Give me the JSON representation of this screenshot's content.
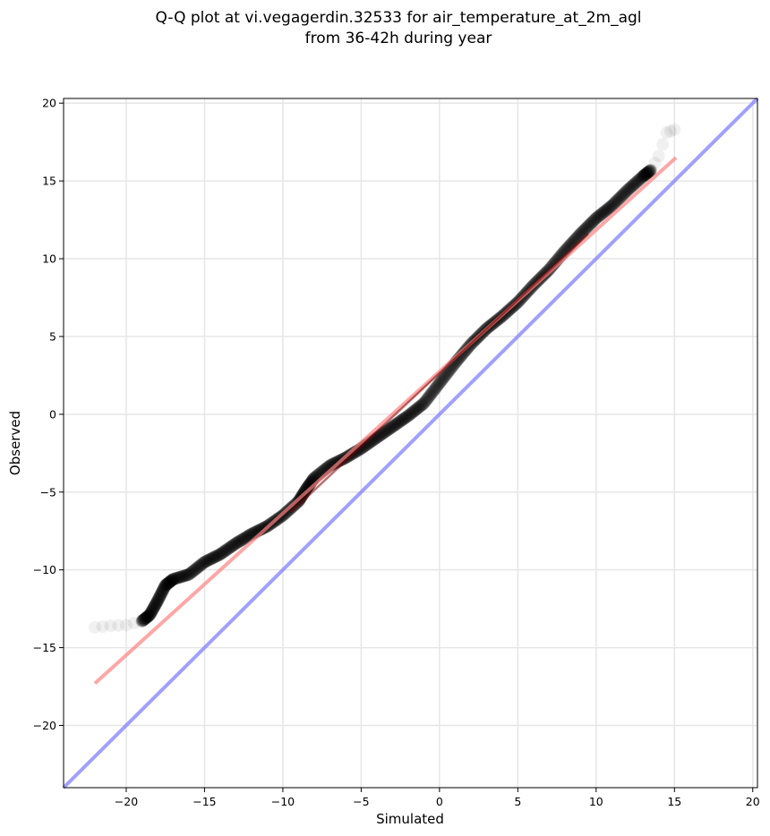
{
  "chart_data": {
    "type": "scatter",
    "title": [
      "Q-Q plot at vi.vegagerdin.32533 for air_temperature_at_2m_agl",
      "from 36-42h during year"
    ],
    "xlabel": "Simulated",
    "ylabel": "Observed",
    "xlim": [
      -24,
      20.3
    ],
    "ylim": [
      -24,
      20.3
    ],
    "xticks": [
      -20,
      -15,
      -10,
      -5,
      0,
      5,
      10,
      15,
      20
    ],
    "yticks": [
      -20,
      -15,
      -10,
      -5,
      0,
      5,
      10,
      15,
      20
    ],
    "grid": true,
    "colors": {
      "points": "#000000",
      "fit_line": "#ff8080",
      "identity_line": "#8080ff",
      "grid": "#e6e6e6"
    },
    "quantile_curve": [
      [
        -22.0,
        -13.7
      ],
      [
        -21.0,
        -13.6
      ],
      [
        -20.0,
        -13.55
      ],
      [
        -19.0,
        -13.3
      ],
      [
        -18.5,
        -12.9
      ],
      [
        -18.0,
        -12.0
      ],
      [
        -17.5,
        -11.0
      ],
      [
        -17.0,
        -10.6
      ],
      [
        -16.0,
        -10.3
      ],
      [
        -15.0,
        -9.5
      ],
      [
        -14.0,
        -9.0
      ],
      [
        -13.0,
        -8.3
      ],
      [
        -12.0,
        -7.7
      ],
      [
        -11.0,
        -7.2
      ],
      [
        -10.0,
        -6.5
      ],
      [
        -9.0,
        -5.6
      ],
      [
        -8.5,
        -4.8
      ],
      [
        -8.0,
        -4.1
      ],
      [
        -7.0,
        -3.3
      ],
      [
        -6.0,
        -2.8
      ],
      [
        -5.0,
        -2.2
      ],
      [
        -4.0,
        -1.5
      ],
      [
        -3.0,
        -0.8
      ],
      [
        -2.0,
        -0.1
      ],
      [
        -1.0,
        0.7
      ],
      [
        0.0,
        2.0
      ],
      [
        1.0,
        3.3
      ],
      [
        2.0,
        4.5
      ],
      [
        3.0,
        5.5
      ],
      [
        4.0,
        6.3
      ],
      [
        5.0,
        7.2
      ],
      [
        6.0,
        8.3
      ],
      [
        7.0,
        9.3
      ],
      [
        8.0,
        10.5
      ],
      [
        9.0,
        11.6
      ],
      [
        10.0,
        12.6
      ],
      [
        11.0,
        13.4
      ],
      [
        12.0,
        14.4
      ],
      [
        13.0,
        15.3
      ],
      [
        13.5,
        15.7
      ],
      [
        14.0,
        16.6
      ],
      [
        14.5,
        18.1
      ],
      [
        15.0,
        18.3
      ]
    ],
    "fit_line": [
      [
        -22.0,
        -17.3
      ],
      [
        15.1,
        16.5
      ]
    ],
    "identity_line": [
      [
        -24,
        -24
      ],
      [
        20.3,
        20.3
      ]
    ]
  }
}
